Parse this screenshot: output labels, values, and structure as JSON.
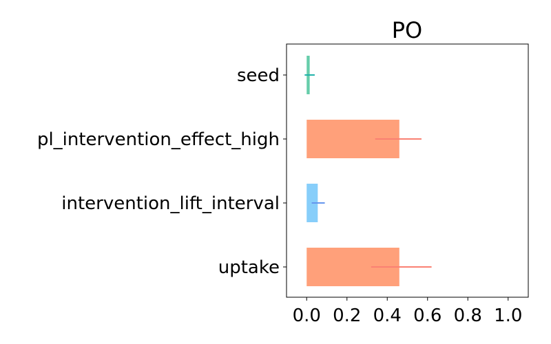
{
  "chart_data": {
    "type": "bar",
    "orientation": "horizontal",
    "title": "PO",
    "xlabel": "",
    "ylabel": "",
    "xlim": [
      -0.1,
      1.1
    ],
    "xticks": [
      "0.0",
      "0.2",
      "0.4",
      "0.6",
      "0.8",
      "1.0"
    ],
    "xtick_values": [
      0.0,
      0.2,
      0.4,
      0.6,
      0.8,
      1.0
    ],
    "grid": false,
    "categories": [
      "seed",
      "pl_intervention_effect_high",
      "intervention_lift_interval",
      "uptake"
    ],
    "values": [
      0.015,
      0.46,
      0.055,
      0.46
    ],
    "error_low": [
      -0.01,
      0.34,
      0.025,
      0.32
    ],
    "error_high": [
      0.04,
      0.57,
      0.09,
      0.62
    ],
    "bar_colors": [
      "#66cdaa",
      "#ffa07a",
      "#87cefa",
      "#ffa07a"
    ],
    "error_colors": [
      "#20b2aa",
      "#fa8072",
      "#6495ed",
      "#fa8072"
    ]
  }
}
